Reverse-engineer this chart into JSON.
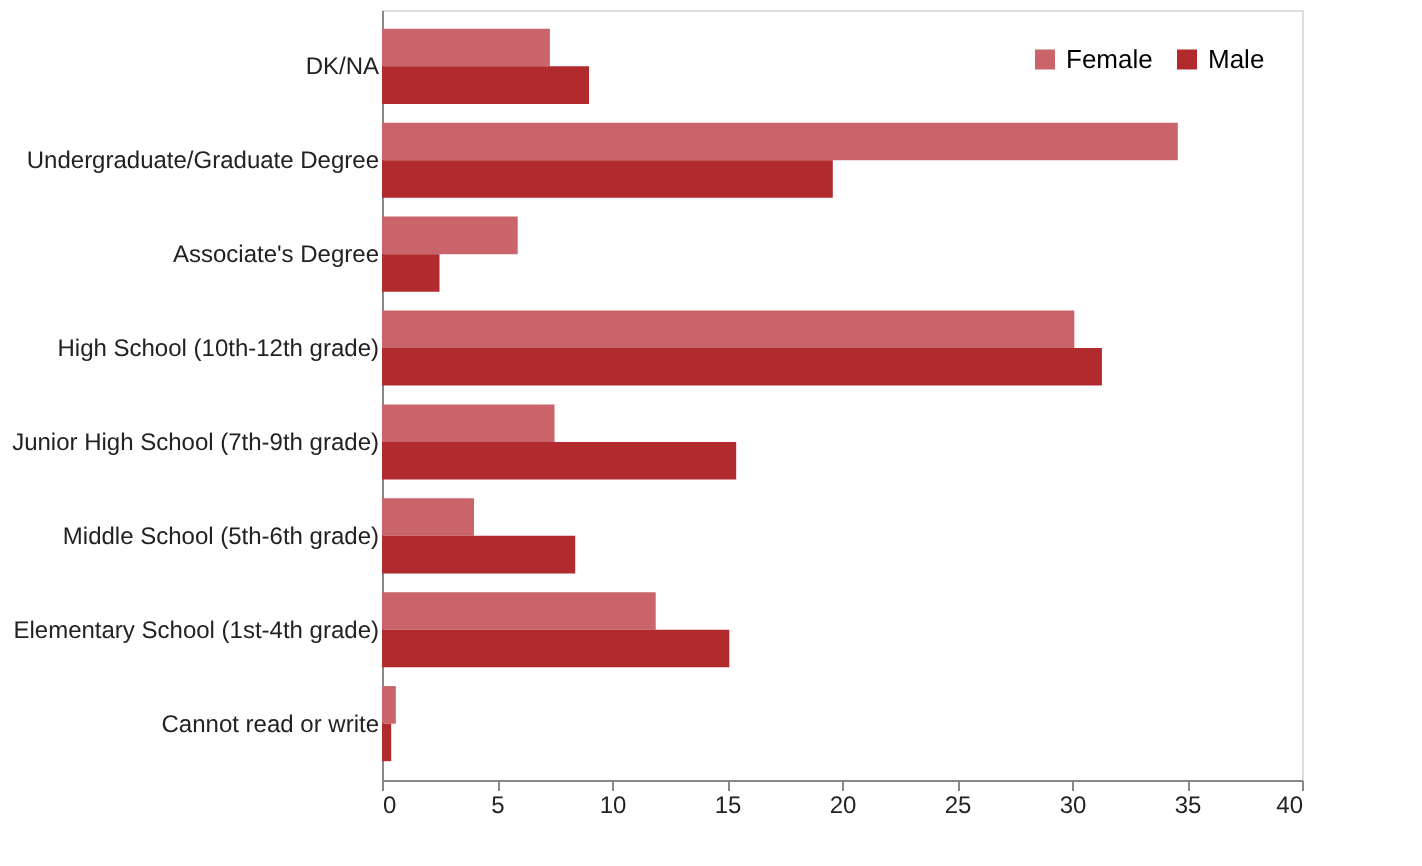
{
  "chart_data": {
    "type": "bar",
    "orientation": "horizontal",
    "categories": [
      "DK/NA",
      "Undergraduate/Graduate Degree",
      "Associate's Degree",
      "High School (10th-12th grade)",
      "Junior High School (7th-9th grade)",
      "Middle School (5th-6th grade)",
      "Elementary School (1st-4th grade)",
      "Cannot read or write"
    ],
    "series": [
      {
        "name": "Female",
        "color": "#c8646a",
        "values": [
          7.3,
          34.6,
          5.9,
          30.1,
          7.5,
          4.0,
          11.9,
          0.6
        ]
      },
      {
        "name": "Male",
        "color": "#b02a2e",
        "values": [
          9.0,
          19.6,
          2.5,
          31.3,
          15.4,
          8.4,
          15.1,
          0.4
        ]
      }
    ],
    "xlim": [
      0,
      40
    ],
    "xticks": [
      0,
      5,
      10,
      15,
      20,
      25,
      30,
      35,
      40
    ],
    "grid": false,
    "legend": "top right"
  }
}
